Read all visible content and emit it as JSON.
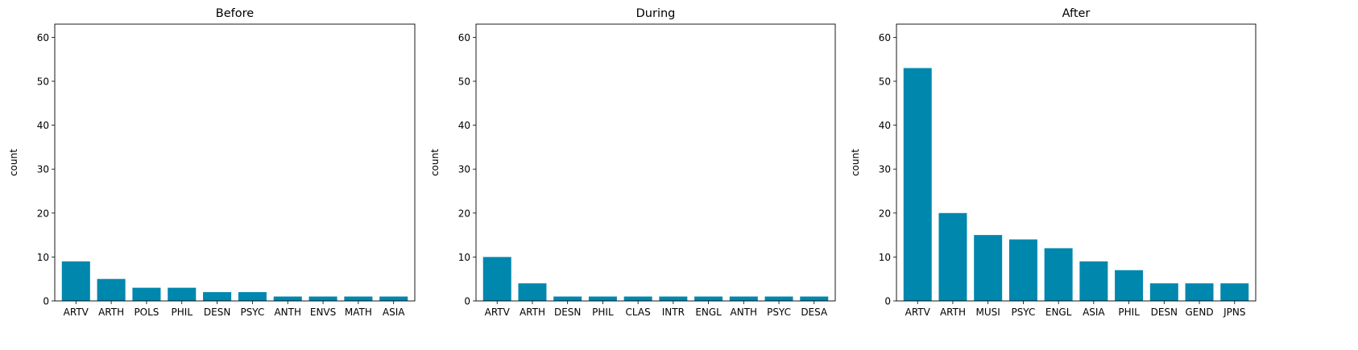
{
  "chart_data": [
    {
      "type": "bar",
      "title": "Before",
      "xlabel": "",
      "ylabel": "count",
      "ylim": [
        0,
        63
      ],
      "yticks": [
        0,
        10,
        20,
        30,
        40,
        50,
        60
      ],
      "grid": false,
      "bar_color": "#0087ae",
      "categories": [
        "ARTV",
        "ARTH",
        "POLS",
        "PHIL",
        "DESN",
        "PSYC",
        "ANTH",
        "ENVS",
        "MATH",
        "ASIA"
      ],
      "values": [
        9,
        5,
        3,
        3,
        2,
        2,
        1,
        1,
        1,
        1
      ]
    },
    {
      "type": "bar",
      "title": "During",
      "xlabel": "",
      "ylabel": "count",
      "ylim": [
        0,
        63
      ],
      "yticks": [
        0,
        10,
        20,
        30,
        40,
        50,
        60
      ],
      "grid": false,
      "bar_color": "#0087ae",
      "categories": [
        "ARTV",
        "ARTH",
        "DESN",
        "PHIL",
        "CLAS",
        "INTR",
        "ENGL",
        "ANTH",
        "PSYC",
        "DESA"
      ],
      "values": [
        10,
        4,
        1,
        1,
        1,
        1,
        1,
        1,
        1,
        1
      ]
    },
    {
      "type": "bar",
      "title": "After",
      "xlabel": "",
      "ylabel": "count",
      "ylim": [
        0,
        63
      ],
      "yticks": [
        0,
        10,
        20,
        30,
        40,
        50,
        60
      ],
      "grid": false,
      "bar_color": "#0087ae",
      "categories": [
        "ARTV",
        "ARTH",
        "MUSI",
        "PSYC",
        "ENGL",
        "ASIA",
        "PHIL",
        "DESN",
        "GEND",
        "JPNS"
      ],
      "values": [
        53,
        20,
        15,
        14,
        12,
        9,
        7,
        4,
        4,
        4
      ]
    }
  ]
}
